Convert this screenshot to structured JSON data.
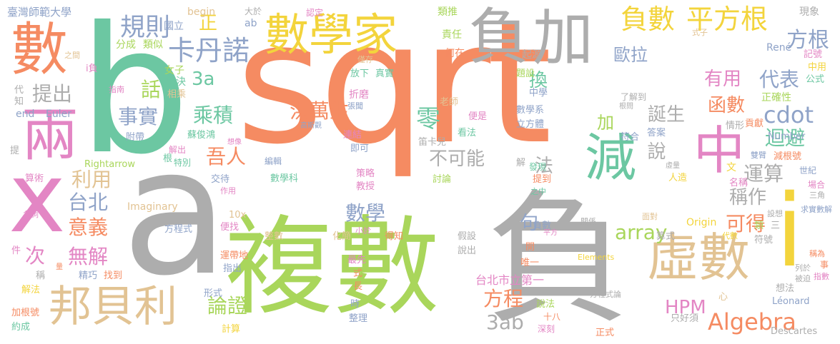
{
  "colors": {
    "green": "#6cc7a2",
    "lime": "#a9d65b",
    "orange": "#f58b62",
    "gray": "#adadad",
    "pink": "#e386c4",
    "blue": "#8fa3c8",
    "tan": "#e2c393",
    "yellow": "#f3d43c"
  },
  "words": {
    "sqrt": "sqrt",
    "b": "b",
    "a": "a",
    "fu_large": "負",
    "fushu_big": "複數",
    "x": "x",
    "i": "i",
    "shu": "數",
    "liang": "兩",
    "fu": "負",
    "jia": "加",
    "shuxuejia": "數學家",
    "xushu": "虛數",
    "jian": "減",
    "zhong": "中",
    "bangbeili": "邦貝利",
    "fushu_neg": "負數",
    "pingfanggen": "平方根",
    "guize": "規則",
    "kadanuo": "卡丹諾",
    "algebra": "Algebra",
    "cdot": "cdot",
    "array": "array",
    "hpm": "HPM",
    "3a": "3a",
    "3ab": "3ab",
    "fanggen": "方根",
    "oula": "歐拉",
    "youyong": "有用",
    "daibiao": "代表",
    "hanshu": "函數",
    "dansheng": "誕生",
    "huibi": "迴避",
    "yunsuan": "運算",
    "chengzuo": "稱作",
    "kede": "可得",
    "hongwansheng": "洪萬生",
    "ling": "零",
    "bukeneng": "不可能",
    "shuo": "說",
    "wuren": "吾人",
    "chengji": "乘積",
    "shishi": "事實",
    "hua": "話",
    "tichu": "提出",
    "liyong": "利用",
    "taibei": "台北",
    "yiyi": "意義",
    "ci": "次",
    "wujie": "無解",
    "lunzheng": "論證",
    "shuxue": "數學",
    "fangcheng": "方程",
    "taibei_first": "台北市立第一",
    "zheng": "正",
    "huan": "換",
    "fa": "法",
    "ju": "句",
    "jia2": "加",
    "taiwan_normal": "臺灣師範大學",
    "guoli": "國立",
    "begin": "begin",
    "ab": "ab",
    "dayu": "大於",
    "renting": "認定",
    "leitui": "類推",
    "xianxiang": "現象",
    "shizi": "式子",
    "jilu": "記號",
    "zhongyong": "中用",
    "gongshi": "公式",
    "zhengquexing": "正確性",
    "rene": "René",
    "zeren": "責任",
    "hezai": "何在",
    "qiyuan": "起源",
    "fenchen": "分成",
    "leisi": "類似",
    "i_fu": "i負",
    "zhijian": "之間",
    "nvzi": "女子",
    "jiejue": "解決",
    "xiangcheng": "相乘",
    "zhinan": "指南",
    "dai": "代",
    "zhi": "知",
    "end": "end",
    "euler": "Euler",
    "fudai": "附帶",
    "zhangwen": "張聞",
    "gaosiguan": "高斯觀",
    "zheyuan": "折磨",
    "fangxia": "放下",
    "zhenshi": "真實",
    "jinliang": "僅存",
    "tishe": "題設",
    "laoshi": "老師",
    "bianshi": "便是",
    "shuxuexi": "數學系",
    "lifangti": "立方體",
    "zhongxue": "中學",
    "genzhen": "根問",
    "lejiedao": "了解到",
    "number": "Number",
    "fuhe": "符合",
    "daan": "答案",
    "qingxing": "情形",
    "gongxian": "貢獻",
    "shuangbi": "雙臂",
    "jiangenhao": "減根號",
    "wen": "文",
    "shiji": "世紀",
    "changhe": "場合",
    "mingcheng": "名稱",
    "sanjiao": "三角",
    "qiushishujie": "求實數解",
    "lianjie": "連結",
    "jike": "即可",
    "dikaer": "笛卡兒",
    "kanfa": "看法",
    "sujunhong": "蘇俊鴻",
    "xiangxiang": "想像",
    "bianji": "編輯",
    "jiechu": "解出",
    "tebie": "特別",
    "gen": "根",
    "rightarrow": "Rightarrow",
    "ti": "提",
    "suanshu": "算術",
    "shuxueke": "數學科",
    "celue": "策略",
    "jiaoshou": "教授",
    "taolun": "討論",
    "jie": "解",
    "faxian": "發現",
    "tidao": "提到",
    "zhizhong": "之中",
    "renzao": "人造",
    "xuliang": "虛量",
    "jiaoti": "交待",
    "zuoyong": "作用",
    "imaginary": "Imaginary",
    "mingci": "名詞",
    "jian2": "件",
    "10x": "10x",
    "bianzhao": "便找",
    "fangchengshi": "方程式",
    "zhengshu": "整數",
    "huajian": "化簡",
    "dezhi": "得知",
    "jiashe": "假設",
    "shuochu": "說出",
    "xiaoyu": "小於",
    "origin": "Origin",
    "suanshi": "算式",
    "daishu": "代數",
    "lei": "類",
    "san": "三",
    "fuhao": "符號",
    "shixian": "設想",
    "guanxi": "關係",
    "liedi": "列於",
    "beizhu": "被迫",
    "chengwei": "稱為",
    "shi": "事",
    "zhishu": "指數",
    "kai": "開",
    "weiyi": "唯一",
    "pingfang": "平方",
    "mianduo": "面對",
    "fushu3": "負數",
    "yundaidi": "運帶地",
    "zhichu": "指出",
    "zuixian": "最先",
    "shi2": "式",
    "chang": "長",
    "elements": "Elements",
    "fangchenglun": "方程式論",
    "xin": "心",
    "xiangfa": "想法",
    "leonard": "Léonard",
    "zhihao": "只好須",
    "descartes": "Descartes",
    "shuofa": "說法",
    "shiba": "十八",
    "shenke": "深刻",
    "zhengshi": "正式",
    "jiejin": "精巧",
    "zhaodao": "找到",
    "liang2": "量",
    "cheng": "稱",
    "jiefa": "解法",
    "jiagenhao": "加根號",
    "yuehua": "約成",
    "xingshi": "形式",
    "jisuan": "計算",
    "shi3": "時",
    "zhengli": "整理"
  }
}
